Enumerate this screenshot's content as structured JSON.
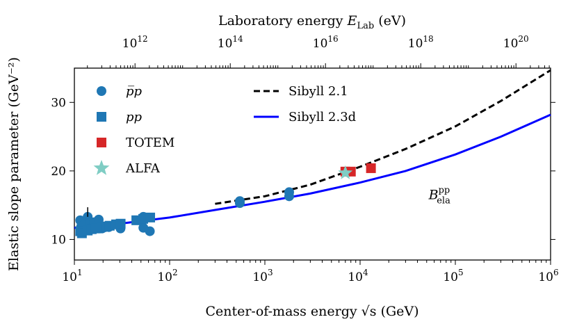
{
  "chart_data": {
    "type": "scatter",
    "title": "",
    "xlabel": "Center-of-mass energy √s (GeV)",
    "ylabel": "Elastic slope parameter (GeV⁻²)",
    "top_xlabel": "Laboratory energy E_Lab (eV)",
    "xscale": "log",
    "xlim": [
      10,
      1000000
    ],
    "ylim": [
      7,
      35
    ],
    "x_ticks": [
      {
        "value": 10,
        "base": "10",
        "exp": "1"
      },
      {
        "value": 100,
        "base": "10",
        "exp": "2"
      },
      {
        "value": 1000,
        "base": "10",
        "exp": "3"
      },
      {
        "value": 10000,
        "base": "10",
        "exp": "4"
      },
      {
        "value": 100000,
        "base": "10",
        "exp": "5"
      },
      {
        "value": 1000000,
        "base": "10",
        "exp": "6"
      }
    ],
    "y_ticks": [
      10,
      20,
      30
    ],
    "top_ticks": [
      {
        "log_elab": 12,
        "base": "10",
        "exp": "12"
      },
      {
        "log_elab": 14,
        "base": "10",
        "exp": "14"
      },
      {
        "log_elab": 16,
        "base": "10",
        "exp": "16"
      },
      {
        "log_elab": 18,
        "base": "10",
        "exp": "18"
      },
      {
        "log_elab": 20,
        "base": "10",
        "exp": "20"
      }
    ],
    "annotation": {
      "text": "B",
      "sup": "pp",
      "sub": "ela",
      "x": 60000,
      "y": 16.9
    },
    "legend_position": "top-left",
    "series": [
      {
        "name": "p̅p",
        "kind": "scatter",
        "marker": "circle",
        "color": "#1f77b4",
        "points": [
          [
            11.5,
            12.8
          ],
          [
            11.8,
            11.9
          ],
          [
            12.5,
            12.1
          ],
          [
            13.8,
            13.3
          ],
          [
            14.5,
            12.6
          ],
          [
            16,
            12.5
          ],
          [
            18,
            12.9
          ],
          [
            19.5,
            11.6
          ],
          [
            23,
            11.8
          ],
          [
            30.5,
            11.6
          ],
          [
            53,
            11.7
          ],
          [
            53,
            13.3
          ],
          [
            62,
            11.2
          ],
          [
            546,
            15.3
          ],
          [
            546,
            15.6
          ],
          [
            1800,
            16.3
          ],
          [
            1800,
            16.9
          ]
        ]
      },
      {
        "name": "pp",
        "kind": "scatter",
        "marker": "square",
        "color": "#1f77b4",
        "points": [
          [
            11.5,
            11.2
          ],
          [
            12,
            10.9
          ],
          [
            13.8,
            11.3
          ],
          [
            15.2,
            11.5
          ],
          [
            16.8,
            11.6
          ],
          [
            19.4,
            11.8
          ],
          [
            21.5,
            11.9
          ],
          [
            23.5,
            12.0
          ],
          [
            27.4,
            12.2
          ],
          [
            30.6,
            12.3
          ],
          [
            44.7,
            12.8
          ],
          [
            52.8,
            13.0
          ],
          [
            62.5,
            13.2
          ]
        ]
      },
      {
        "name": "TOTEM",
        "kind": "scatter",
        "marker": "square",
        "color": "#d62728",
        "points": [
          [
            7000,
            19.9
          ],
          [
            8000,
            19.9
          ],
          [
            13000,
            20.4
          ]
        ]
      },
      {
        "name": "ALFA",
        "kind": "scatter",
        "marker": "star",
        "color": "#7fcdc4",
        "points": [
          [
            7000,
            19.7
          ]
        ]
      },
      {
        "name": "Sibyll 2.1",
        "kind": "line",
        "dash": "dashed",
        "color": "#000000",
        "points": [
          [
            300,
            15.2
          ],
          [
            1000,
            16.3
          ],
          [
            3000,
            18.0
          ],
          [
            10000,
            20.6
          ],
          [
            30000,
            23.2
          ],
          [
            100000,
            26.5
          ],
          [
            300000,
            30.2
          ],
          [
            1000000,
            34.7
          ]
        ]
      },
      {
        "name": "Sibyll 2.3d",
        "kind": "line",
        "dash": "solid",
        "color": "#0000ff",
        "points": [
          [
            10,
            11.7
          ],
          [
            30,
            12.3
          ],
          [
            100,
            13.2
          ],
          [
            300,
            14.3
          ],
          [
            1000,
            15.5
          ],
          [
            3000,
            16.7
          ],
          [
            10000,
            18.3
          ],
          [
            30000,
            20.0
          ],
          [
            100000,
            22.4
          ],
          [
            300000,
            25.0
          ],
          [
            1000000,
            28.2
          ]
        ]
      }
    ]
  }
}
